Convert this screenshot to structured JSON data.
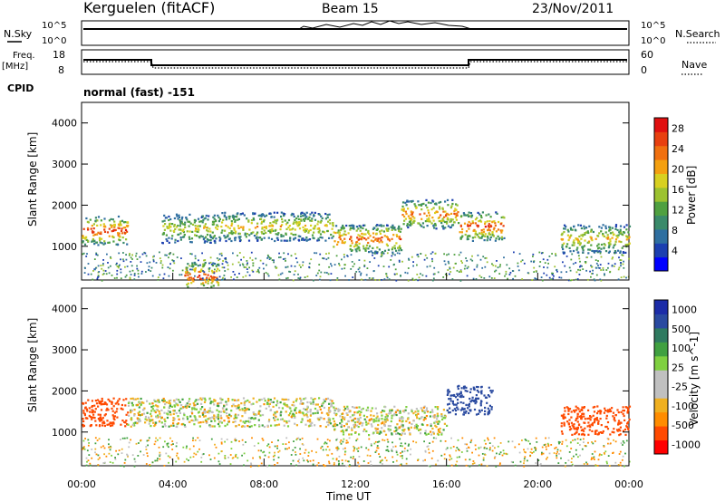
{
  "header": {
    "station": "Kerguelen (fitACF)",
    "beam": "Beam 15",
    "date": "23/Nov/2011"
  },
  "meta_panels": {
    "nsky_label": "N.Sky",
    "nsky_ticks": [
      "10^5",
      "10^0"
    ],
    "nsearch_label": "N.Search",
    "nsearch_ticks": [
      "10^5",
      "10^0"
    ],
    "freq_label": "Freq.",
    "freq_unit": "[MHz]",
    "freq_ticks": [
      "18",
      "8"
    ],
    "nave_label": "Nave",
    "nave_ticks": [
      "60",
      "0"
    ],
    "cpid_label": "CPID",
    "cpid_value": "normal (fast) -151"
  },
  "colors": {
    "power_scale": [
      "#0000ff",
      "#1c3fb0",
      "#2f6fa0",
      "#3a8a6a",
      "#4fa040",
      "#9cc230",
      "#d8d020",
      "#f4a010",
      "#f07010",
      "#e84010",
      "#e01010"
    ],
    "velocity_scale": [
      "#ff0000",
      "#ff4a00",
      "#ff8c00",
      "#f0b020",
      "#c0c0c0",
      "#c0c0c0",
      "#7fd040",
      "#40a040",
      "#2f7a60",
      "#2a4aa0",
      "#1c2ca8"
    ]
  },
  "chart_data": [
    {
      "type": "heatmap",
      "panel": "power",
      "ylabel": "Slant Range [km]",
      "yticks": [
        "4000",
        "3000",
        "2000",
        "1000"
      ],
      "ylim": [
        180,
        4500
      ],
      "colorbar": {
        "label": "Power [dB]",
        "ticks": [
          "28",
          "24",
          "20",
          "16",
          "12",
          "8",
          "4"
        ],
        "range": [
          0,
          30
        ]
      },
      "echo_bands": [
        {
          "t_start": 0.0,
          "t_end": 2.0,
          "range_km": 1400,
          "power_db": 28
        },
        {
          "t_start": 3.5,
          "t_end": 6.0,
          "range_km": 1450,
          "power_db": 18
        },
        {
          "t_start": 4.5,
          "t_end": 6.0,
          "range_km": 300,
          "power_db": 28
        },
        {
          "t_start": 6.0,
          "t_end": 11.0,
          "range_km": 1500,
          "power_db": 20
        },
        {
          "t_start": 11.0,
          "t_end": 14.0,
          "range_km": 1200,
          "power_db": 26
        },
        {
          "t_start": 14.0,
          "t_end": 16.5,
          "range_km": 1800,
          "power_db": 24
        },
        {
          "t_start": 16.5,
          "t_end": 18.5,
          "range_km": 1500,
          "power_db": 28
        },
        {
          "t_start": 21.0,
          "t_end": 24.0,
          "range_km": 1200,
          "power_db": 20
        }
      ]
    },
    {
      "type": "heatmap",
      "panel": "velocity",
      "xlabel": "Time UT",
      "xticks": [
        "00:00",
        "04:00",
        "08:00",
        "12:00",
        "16:00",
        "20:00",
        "00:00"
      ],
      "xlim": [
        0,
        24
      ],
      "ylabel": "Slant Range [km]",
      "yticks": [
        "4000",
        "3000",
        "2000",
        "1000"
      ],
      "ylim": [
        180,
        4500
      ],
      "colorbar": {
        "label": "Velocity [m s^-1]",
        "ticks": [
          "1000",
          "500",
          "100",
          "25",
          "-25",
          "-100",
          "-500",
          "-1000"
        ]
      },
      "echo_bands": [
        {
          "t_start": 0.0,
          "t_end": 2.0,
          "range_km": 1500,
          "velocity": -400
        },
        {
          "t_start": 2.0,
          "t_end": 11.0,
          "range_km": 1500,
          "velocity": 0
        },
        {
          "t_start": 11.0,
          "t_end": 16.0,
          "range_km": 1300,
          "velocity": 0
        },
        {
          "t_start": 16.0,
          "t_end": 18.0,
          "range_km": 1800,
          "velocity": 600
        },
        {
          "t_start": 21.0,
          "t_end": 24.0,
          "range_km": 1300,
          "velocity": -400
        }
      ]
    }
  ]
}
